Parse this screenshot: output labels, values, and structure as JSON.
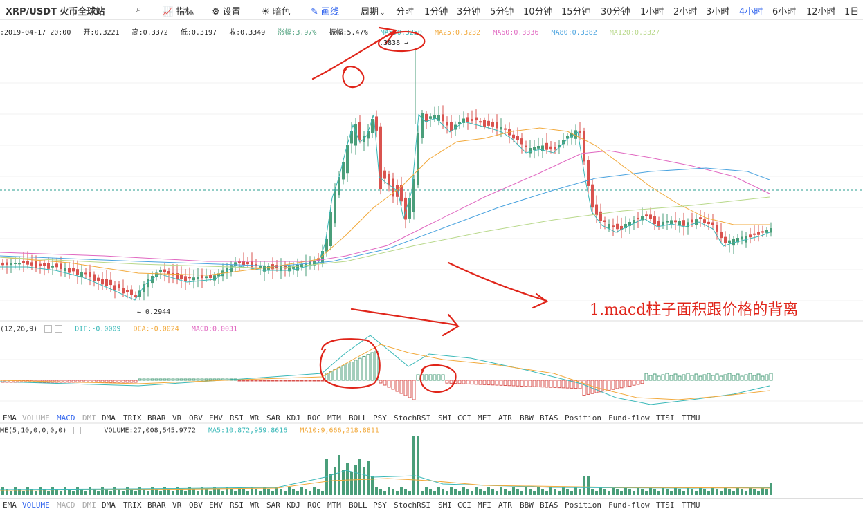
{
  "toolbar": {
    "pair": "XRP/USDT 火币全球站",
    "indicator_label": "指标",
    "settings_label": "设置",
    "theme_label": "暗色",
    "draw_label": "画线",
    "period_label": "周期",
    "periods": [
      "分时",
      "1分钟",
      "3分钟",
      "5分钟",
      "10分钟",
      "15分钟",
      "30分钟",
      "1小时",
      "2小时",
      "3小时",
      "4小时",
      "6小时",
      "12小时",
      "1日"
    ],
    "active_period": "4小时"
  },
  "ohlc": {
    "date": ":2019-04-17 20:00",
    "open": "开:0.3221",
    "high": "高:0.3372",
    "low": "低:0.3197",
    "close": "收:0.3349",
    "change": "涨幅:3.97%",
    "amplitude": "振幅:5.47%",
    "ma5": "MA5:0.3250",
    "ma25": "MA25:0.3232",
    "ma60": "MA60:0.3336",
    "ma80": "MA80:0.3382",
    "ma120": "MA120:0.3327"
  },
  "labels": {
    "high": ".3838 →",
    "low": "← 0.2944",
    "annotation": "1.macd柱子面积跟价格的背离"
  },
  "macd": {
    "name": "(12,26,9)",
    "dif": "DIF:-0.0009",
    "dea": "DEA:-0.0024",
    "macd": "MACD:0.0031"
  },
  "indicator_tabs": [
    "EMA",
    "VOLUME",
    "MACD",
    "DMI",
    "DMA",
    "TRIX",
    "BRAR",
    "VR",
    "OBV",
    "EMV",
    "RSI",
    "WR",
    "SAR",
    "KDJ",
    "ROC",
    "MTM",
    "BOLL",
    "PSY",
    "StochRSI",
    "SMI",
    "CCI",
    "MFI",
    "ATR",
    "BBW",
    "BIAS",
    "Position",
    "Fund-flow",
    "TTSI",
    "TTMU"
  ],
  "volume": {
    "name": "ME(5,10,0,0,0,0)",
    "value": "VOLUME:27,008,545.9772",
    "ma5": "MA5:10,872,959.8616",
    "ma10": "MA10:9,666,218.8811"
  },
  "volume_tabs": [
    "EMA",
    "VOLUME",
    "MACD",
    "DMI",
    "DMA",
    "TRIX",
    "BRAR",
    "VR",
    "OBV",
    "EMV",
    "RSI",
    "WR",
    "SAR",
    "KDJ",
    "ROC",
    "MTM",
    "BOLL",
    "PSY",
    "StochRSI",
    "SMI",
    "CCI",
    "MFI",
    "ATR",
    "BBW",
    "BIAS",
    "Position",
    "Fund-flow",
    "TTSI",
    "TTMU"
  ],
  "colors": {
    "up": "#4a9e7a",
    "down": "#d9534f",
    "ma5": "#39b8b8",
    "ma25": "#f2a93b",
    "ma60": "#e066c0",
    "ma80": "#4aa3df",
    "ma120": "#b8d88a",
    "active": "#3366ee",
    "annot": "#e0251a"
  }
}
